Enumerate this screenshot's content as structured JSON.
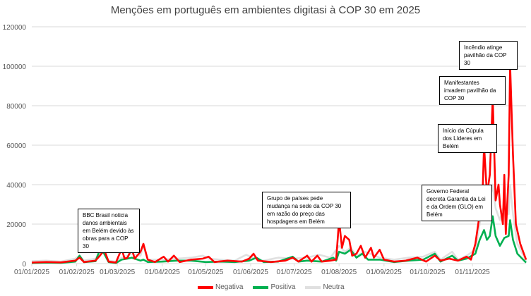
{
  "chart_data": {
    "type": "line",
    "title": "Menções em português em ambientes digitasi à COP 30 em 2025",
    "xlabel": "",
    "ylabel": "",
    "ylim": [
      0,
      120000
    ],
    "yticks": [
      0,
      20000,
      40000,
      60000,
      80000,
      100000,
      120000
    ],
    "xticks": [
      {
        "day": 0,
        "label": "01/01/2025"
      },
      {
        "day": 31,
        "label": "01/02/2025"
      },
      {
        "day": 59,
        "label": "01/03/2025"
      },
      {
        "day": 90,
        "label": "01/04/2025"
      },
      {
        "day": 120,
        "label": "01/05/2025"
      },
      {
        "day": 151,
        "label": "01/06/2025"
      },
      {
        "day": 181,
        "label": "01/07/2025"
      },
      {
        "day": 212,
        "label": "01/08/2025"
      },
      {
        "day": 243,
        "label": "01/09/2025"
      },
      {
        "day": 273,
        "label": "01/10/2025"
      },
      {
        "day": 304,
        "label": "01/11/2025"
      }
    ],
    "xlim_days": [
      0,
      341
    ],
    "grid": true,
    "legend_position": "bottom",
    "series": [
      {
        "name": "Negativa",
        "color": "#ff0000",
        "points": [
          [
            0,
            500
          ],
          [
            10,
            800
          ],
          [
            20,
            600
          ],
          [
            30,
            1500
          ],
          [
            33,
            3000
          ],
          [
            36,
            800
          ],
          [
            44,
            1500
          ],
          [
            47,
            4000
          ],
          [
            50,
            7000
          ],
          [
            53,
            1000
          ],
          [
            58,
            500
          ],
          [
            62,
            7500
          ],
          [
            64,
            2500
          ],
          [
            66,
            3000
          ],
          [
            69,
            7500
          ],
          [
            71,
            2500
          ],
          [
            75,
            6000
          ],
          [
            77,
            10000
          ],
          [
            80,
            2000
          ],
          [
            85,
            800
          ],
          [
            91,
            3500
          ],
          [
            94,
            1000
          ],
          [
            98,
            4000
          ],
          [
            102,
            800
          ],
          [
            110,
            2000
          ],
          [
            118,
            2500
          ],
          [
            122,
            3500
          ],
          [
            126,
            800
          ],
          [
            135,
            1500
          ],
          [
            145,
            1000
          ],
          [
            150,
            2500
          ],
          [
            153,
            5000
          ],
          [
            156,
            1500
          ],
          [
            165,
            800
          ],
          [
            175,
            1500
          ],
          [
            180,
            3000
          ],
          [
            184,
            1000
          ],
          [
            190,
            4000
          ],
          [
            193,
            1000
          ],
          [
            197,
            4000
          ],
          [
            200,
            1000
          ],
          [
            206,
            1500
          ],
          [
            210,
            2000
          ],
          [
            212,
            22000
          ],
          [
            214,
            8000
          ],
          [
            216,
            14000
          ],
          [
            219,
            12000
          ],
          [
            221,
            4000
          ],
          [
            224,
            5000
          ],
          [
            227,
            9000
          ],
          [
            230,
            3000
          ],
          [
            234,
            8000
          ],
          [
            236,
            3000
          ],
          [
            240,
            7000
          ],
          [
            243,
            2000
          ],
          [
            250,
            1000
          ],
          [
            258,
            1500
          ],
          [
            266,
            3000
          ],
          [
            272,
            1000
          ],
          [
            278,
            4000
          ],
          [
            282,
            1500
          ],
          [
            288,
            2500
          ],
          [
            294,
            1500
          ],
          [
            300,
            3500
          ],
          [
            303,
            2000
          ],
          [
            306,
            10000
          ],
          [
            309,
            25000
          ],
          [
            311,
            35000
          ],
          [
            312,
            60000
          ],
          [
            314,
            35000
          ],
          [
            316,
            45000
          ],
          [
            318,
            84000
          ],
          [
            320,
            32000
          ],
          [
            322,
            40000
          ],
          [
            323,
            30000
          ],
          [
            325,
            20000
          ],
          [
            326,
            45000
          ],
          [
            327,
            15000
          ],
          [
            329,
            45000
          ],
          [
            330,
            101000
          ],
          [
            332,
            55000
          ],
          [
            334,
            20000
          ],
          [
            337,
            10000
          ],
          [
            341,
            2000
          ]
        ]
      },
      {
        "name": "Positiva",
        "color": "#00b050",
        "points": [
          [
            0,
            300
          ],
          [
            10,
            500
          ],
          [
            20,
            400
          ],
          [
            30,
            1000
          ],
          [
            33,
            4000
          ],
          [
            36,
            700
          ],
          [
            44,
            1200
          ],
          [
            47,
            7000
          ],
          [
            50,
            5000
          ],
          [
            53,
            800
          ],
          [
            58,
            300
          ],
          [
            62,
            2000
          ],
          [
            66,
            2500
          ],
          [
            69,
            3000
          ],
          [
            75,
            1500
          ],
          [
            77,
            2000
          ],
          [
            80,
            800
          ],
          [
            90,
            1000
          ],
          [
            100,
            1500
          ],
          [
            110,
            1500
          ],
          [
            120,
            800
          ],
          [
            130,
            1000
          ],
          [
            140,
            800
          ],
          [
            150,
            1500
          ],
          [
            155,
            3000
          ],
          [
            160,
            800
          ],
          [
            170,
            1000
          ],
          [
            180,
            3500
          ],
          [
            184,
            1000
          ],
          [
            190,
            1500
          ],
          [
            200,
            1000
          ],
          [
            208,
            3000
          ],
          [
            210,
            1500
          ],
          [
            212,
            6000
          ],
          [
            216,
            5000
          ],
          [
            220,
            7000
          ],
          [
            224,
            3000
          ],
          [
            228,
            5000
          ],
          [
            232,
            2000
          ],
          [
            240,
            2000
          ],
          [
            250,
            800
          ],
          [
            260,
            1500
          ],
          [
            270,
            2000
          ],
          [
            278,
            5000
          ],
          [
            282,
            1000
          ],
          [
            290,
            4000
          ],
          [
            294,
            1500
          ],
          [
            300,
            2500
          ],
          [
            306,
            5000
          ],
          [
            309,
            12000
          ],
          [
            312,
            17000
          ],
          [
            314,
            12000
          ],
          [
            316,
            14000
          ],
          [
            318,
            24000
          ],
          [
            320,
            14000
          ],
          [
            323,
            9000
          ],
          [
            326,
            13000
          ],
          [
            329,
            14000
          ],
          [
            330,
            22000
          ],
          [
            332,
            12000
          ],
          [
            335,
            5000
          ],
          [
            341,
            500
          ]
        ]
      },
      {
        "name": "Neutra",
        "color": "#e0e0e0",
        "points": [
          [
            0,
            1200
          ],
          [
            10,
            1500
          ],
          [
            20,
            1000
          ],
          [
            30,
            2500
          ],
          [
            33,
            4000
          ],
          [
            36,
            1500
          ],
          [
            44,
            2500
          ],
          [
            47,
            6000
          ],
          [
            50,
            5000
          ],
          [
            53,
            1500
          ],
          [
            58,
            1000
          ],
          [
            62,
            3000
          ],
          [
            66,
            4000
          ],
          [
            69,
            5000
          ],
          [
            75,
            4000
          ],
          [
            77,
            9000
          ],
          [
            80,
            2000
          ],
          [
            90,
            2000
          ],
          [
            100,
            2500
          ],
          [
            110,
            3000
          ],
          [
            118,
            4000
          ],
          [
            122,
            2500
          ],
          [
            130,
            2000
          ],
          [
            140,
            1500
          ],
          [
            148,
            4500
          ],
          [
            152,
            3000
          ],
          [
            160,
            1500
          ],
          [
            170,
            3000
          ],
          [
            180,
            2500
          ],
          [
            190,
            3000
          ],
          [
            198,
            4500
          ],
          [
            206,
            3000
          ],
          [
            212,
            9000
          ],
          [
            216,
            6000
          ],
          [
            220,
            8000
          ],
          [
            224,
            4000
          ],
          [
            230,
            6000
          ],
          [
            240,
            3000
          ],
          [
            250,
            2000
          ],
          [
            260,
            3000
          ],
          [
            270,
            3500
          ],
          [
            278,
            6000
          ],
          [
            282,
            2000
          ],
          [
            290,
            6000
          ],
          [
            294,
            2000
          ],
          [
            300,
            4000
          ],
          [
            306,
            7000
          ],
          [
            309,
            20000
          ],
          [
            312,
            35000
          ],
          [
            314,
            28000
          ],
          [
            316,
            32000
          ],
          [
            318,
            40000
          ],
          [
            320,
            28000
          ],
          [
            323,
            22000
          ],
          [
            326,
            30000
          ],
          [
            329,
            25000
          ],
          [
            330,
            40000
          ],
          [
            332,
            25000
          ],
          [
            335,
            10000
          ],
          [
            341,
            1500
          ]
        ]
      }
    ],
    "annotations": [
      {
        "text": "BBC Brasil noticia danos ambientais em Belém devido às obras para a COP 30"
      },
      {
        "text": "Grupo de países pede mudança na sede da COP 30 em razão do preço das hospdagens em Belém"
      },
      {
        "text": "Governo Federal decreta Garantia da Lei e da Ordem (GLO) em Belém"
      },
      {
        "text": "Início da Cúpula dos Líderes em Belém"
      },
      {
        "text": "Manifestantes invadem pavilhão da COP  30"
      },
      {
        "text": "Incêndio atinge pavilhão da COP 30"
      }
    ]
  }
}
